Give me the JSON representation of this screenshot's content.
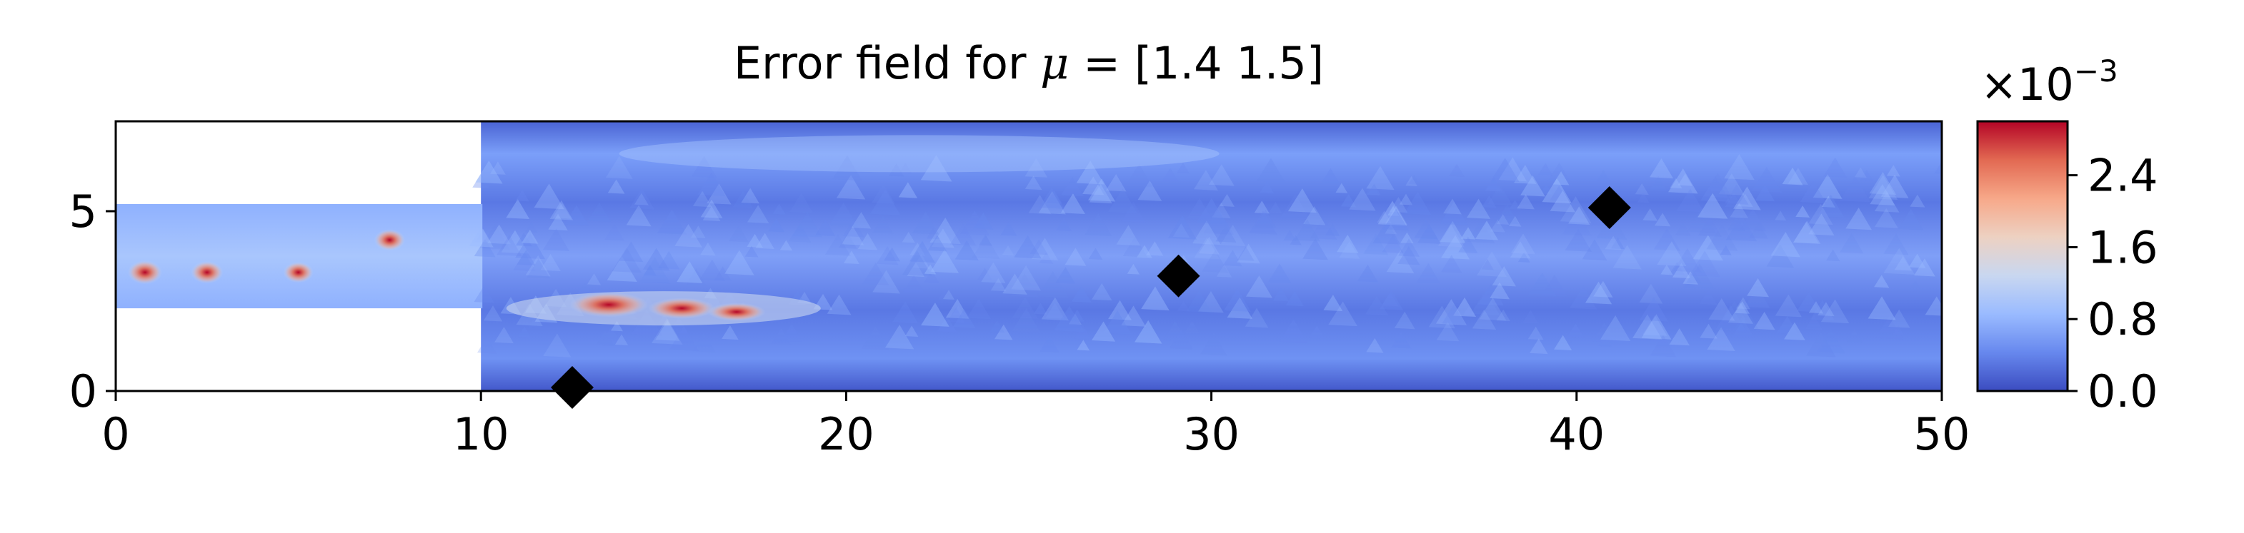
{
  "chart_data": {
    "type": "heatmap",
    "title_prefix": "Error field for ",
    "title_symbol": "μ",
    "title_suffix": " = [1.4 1.5]",
    "xlim": [
      0,
      50
    ],
    "ylim": [
      0,
      7.5
    ],
    "x_ticks": [
      0,
      10,
      20,
      30,
      40,
      50
    ],
    "y_ticks": [
      0,
      5
    ],
    "domain": {
      "inlet_channel": {
        "x": [
          0,
          10
        ],
        "y": [
          2.3,
          5.2
        ]
      },
      "main_channel": {
        "x": [
          10,
          50
        ],
        "y": [
          0,
          7.5
        ]
      }
    },
    "error_hotspots": [
      {
        "x": 0.8,
        "y": 3.3,
        "level": 2.6
      },
      {
        "x": 2.5,
        "y": 3.3,
        "level": 2.3
      },
      {
        "x": 5.0,
        "y": 3.3,
        "level": 2.0
      },
      {
        "x": 7.5,
        "y": 4.2,
        "level": 2.1
      },
      {
        "x": 13.5,
        "y": 2.4,
        "level": 2.8
      },
      {
        "x": 15.5,
        "y": 2.3,
        "level": 2.0
      },
      {
        "x": 17.0,
        "y": 2.2,
        "level": 1.4
      }
    ],
    "markers": {
      "shape": "diamond",
      "color": "#000000",
      "points": [
        {
          "x": 12.5,
          "y": 0.1
        },
        {
          "x": 29.1,
          "y": 3.2
        },
        {
          "x": 40.9,
          "y": 5.1
        }
      ]
    },
    "colorbar": {
      "colormap": "coolwarm",
      "range": [
        0.0,
        3.0
      ],
      "ticks": [
        "0.0",
        "0.8",
        "1.6",
        "2.4"
      ],
      "tick_values": [
        0.0,
        0.8,
        1.6,
        2.4
      ],
      "scale_base": "×10",
      "scale_exponent": "−3",
      "colors": [
        "#3b4cc0",
        "#6788ee",
        "#9abbff",
        "#c9d7f0",
        "#edd1c2",
        "#f7a889",
        "#e26952",
        "#b40426"
      ]
    }
  }
}
